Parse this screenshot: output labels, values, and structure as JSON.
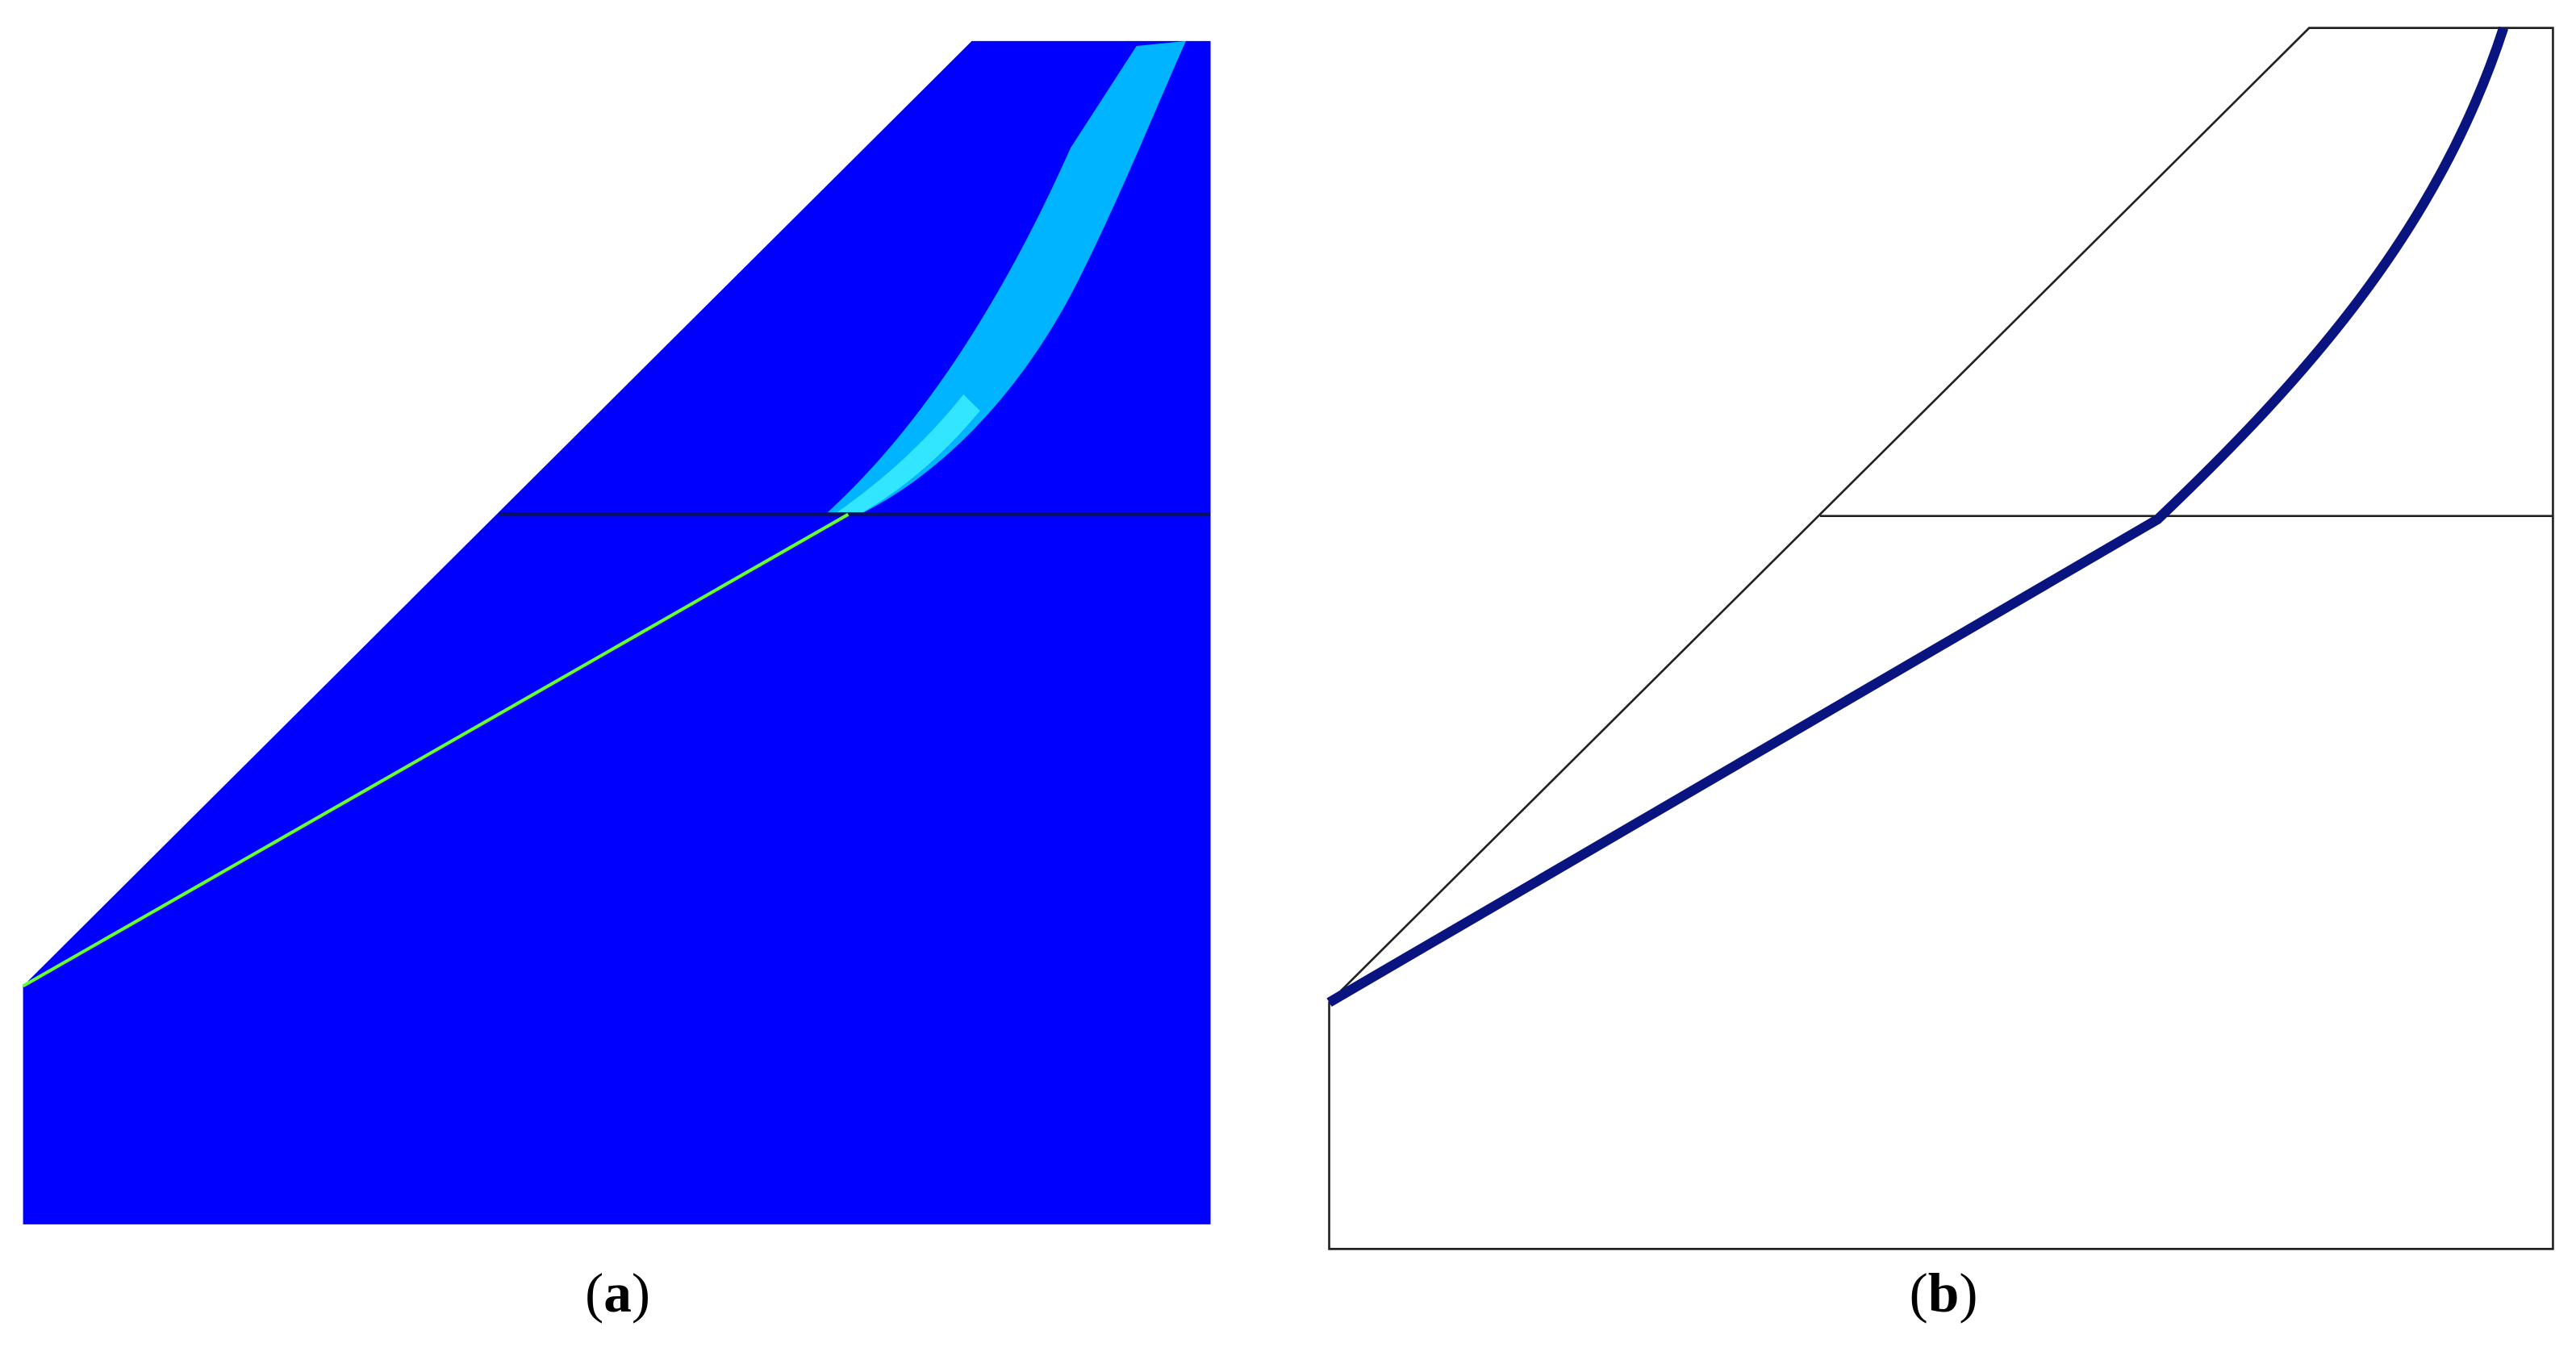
{
  "panels": [
    {
      "label": [
        "(",
        "a",
        ")"
      ]
    },
    {
      "label": [
        "(",
        "b",
        ")"
      ]
    }
  ]
}
